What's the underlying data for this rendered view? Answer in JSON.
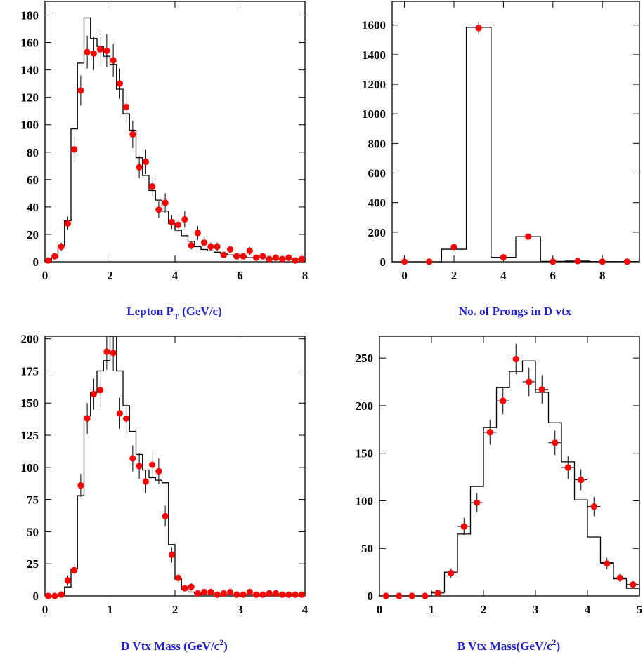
{
  "colors": {
    "data_points": "#ff0000",
    "histogram": "#000000",
    "axis_titles": "#1f1fd6"
  },
  "chart_data": [
    {
      "type": "histogram_with_points",
      "xlabel": "Lepton P",
      "xlabel_sub": "T",
      "xlabel_tail": " (GeV/c)",
      "xlim": [
        0,
        8
      ],
      "ylim": [
        0,
        190
      ],
      "x_ticks": [
        0,
        2,
        4,
        6,
        8
      ],
      "y_ticks": [
        0,
        20,
        40,
        60,
        80,
        100,
        120,
        140,
        160,
        180
      ],
      "histogram": {
        "edges": [
          0,
          0.2,
          0.4,
          0.6,
          0.8,
          1.0,
          1.2,
          1.4,
          1.6,
          1.8,
          2.0,
          2.2,
          2.4,
          2.6,
          2.8,
          3.0,
          3.2,
          3.4,
          3.6,
          3.8,
          4.0,
          4.2,
          4.4,
          4.6,
          4.8,
          5.0,
          5.2,
          5.4,
          5.6,
          5.8,
          6.0,
          6.2,
          6.4,
          6.6,
          6.8,
          7.0,
          7.2,
          7.4,
          7.6,
          7.8,
          8.0
        ],
        "values": [
          1,
          3,
          12,
          30,
          97,
          145,
          178,
          163,
          157,
          150,
          144,
          126,
          108,
          96,
          76,
          63,
          52,
          45,
          37,
          28,
          23,
          19,
          15,
          11,
          9,
          8,
          7,
          6,
          5,
          4,
          4,
          3,
          3,
          3,
          2,
          2,
          2,
          2,
          2,
          2
        ]
      },
      "points": {
        "x": [
          0.1,
          0.3,
          0.5,
          0.7,
          0.9,
          1.1,
          1.3,
          1.5,
          1.7,
          1.9,
          2.1,
          2.3,
          2.5,
          2.7,
          2.9,
          3.1,
          3.3,
          3.5,
          3.7,
          3.9,
          4.1,
          4.3,
          4.5,
          4.7,
          4.9,
          5.1,
          5.3,
          5.5,
          5.7,
          5.9,
          6.1,
          6.3,
          6.5,
          6.7,
          6.9,
          7.1,
          7.3,
          7.5,
          7.7,
          7.9
        ],
        "y": [
          1,
          4,
          11,
          28,
          82,
          125,
          153,
          152,
          155,
          154,
          147,
          130,
          113,
          93,
          69,
          73,
          55,
          38,
          43,
          29,
          27,
          31,
          12,
          21,
          14,
          11,
          11,
          5,
          9,
          4,
          4,
          8,
          3,
          4,
          2,
          3,
          2,
          3,
          1,
          2
        ],
        "yerr": [
          1,
          2,
          3,
          5,
          9,
          11,
          12,
          12,
          12,
          12,
          12,
          11,
          11,
          10,
          8,
          9,
          7,
          6,
          7,
          5,
          5,
          6,
          3,
          5,
          4,
          3,
          3,
          2,
          3,
          2,
          2,
          3,
          2,
          2,
          1,
          2,
          1,
          2,
          1,
          1
        ]
      }
    },
    {
      "type": "histogram_with_points",
      "xlabel": "No. of Prongs in D vtx",
      "xlim": [
        -0.5,
        9.5
      ],
      "ylim": [
        0,
        1760
      ],
      "x_ticks": [
        0,
        2,
        4,
        6,
        8
      ],
      "y_ticks": [
        0,
        200,
        400,
        600,
        800,
        1000,
        1200,
        1400,
        1600
      ],
      "histogram": {
        "edges": [
          -0.5,
          0.5,
          1.5,
          2.5,
          3.5,
          4.5,
          5.5,
          6.5,
          7.5,
          8.5,
          9.5
        ],
        "values": [
          0,
          0,
          85,
          1585,
          30,
          170,
          3,
          5,
          1,
          1
        ]
      },
      "points": {
        "x": [
          0,
          1,
          2,
          3,
          4,
          5,
          6,
          7,
          8,
          9
        ],
        "y": [
          1,
          1,
          100,
          1580,
          30,
          170,
          1,
          5,
          1,
          1
        ],
        "yerr": [
          1,
          1,
          10,
          40,
          5,
          13,
          1,
          2,
          1,
          1
        ]
      }
    },
    {
      "type": "histogram_with_points",
      "xlabel": "D Vtx Mass (GeV/c",
      "xlabel_sup": "2",
      "xlabel_tail": ")",
      "xlim": [
        0,
        4
      ],
      "ylim": [
        0,
        202
      ],
      "x_ticks": [
        0,
        1,
        2,
        3,
        4
      ],
      "y_ticks": [
        0,
        25,
        50,
        75,
        100,
        125,
        150,
        175,
        200
      ],
      "histogram": {
        "edges": [
          0,
          0.1,
          0.2,
          0.3,
          0.4,
          0.5,
          0.6,
          0.7,
          0.8,
          0.9,
          1.0,
          1.1,
          1.2,
          1.3,
          1.4,
          1.5,
          1.6,
          1.7,
          1.8,
          1.9,
          2.0,
          2.1,
          2.2,
          2.3,
          2.4,
          2.5,
          2.6,
          2.7,
          2.8,
          2.9,
          3.0,
          3.1,
          3.2,
          3.3,
          3.4,
          3.5,
          3.6,
          3.7,
          3.8,
          3.9,
          4.0
        ],
        "values": [
          0,
          0,
          1,
          7,
          21,
          78,
          140,
          158,
          175,
          183,
          210,
          175,
          148,
          128,
          110,
          98,
          92,
          90,
          88,
          40,
          13,
          5,
          3,
          2,
          1,
          1,
          1,
          1,
          1,
          1,
          1,
          1,
          1,
          1,
          1,
          1,
          1,
          1,
          1,
          1
        ]
      },
      "points": {
        "x": [
          0.05,
          0.15,
          0.25,
          0.35,
          0.45,
          0.55,
          0.65,
          0.75,
          0.85,
          0.95,
          1.05,
          1.15,
          1.25,
          1.35,
          1.45,
          1.55,
          1.65,
          1.75,
          1.85,
          1.95,
          2.05,
          2.15,
          2.25,
          2.35,
          2.45,
          2.55,
          2.65,
          2.75,
          2.85,
          2.95,
          3.05,
          3.15,
          3.25,
          3.35,
          3.45,
          3.55,
          3.65,
          3.75,
          3.85,
          3.95
        ],
        "y": [
          0,
          0,
          1,
          12,
          20,
          86,
          138,
          157,
          160,
          190,
          189,
          142,
          138,
          107,
          101,
          89,
          102,
          97,
          62,
          32,
          14,
          6,
          7,
          2,
          3,
          3,
          1,
          2,
          3,
          1,
          1,
          3,
          1,
          1,
          2,
          2,
          1,
          1,
          1,
          1
        ],
        "yerr": [
          1,
          1,
          1,
          4,
          5,
          9,
          12,
          12,
          13,
          14,
          14,
          12,
          12,
          10,
          10,
          9,
          10,
          10,
          8,
          6,
          4,
          2,
          3,
          1,
          2,
          2,
          1,
          1,
          2,
          1,
          1,
          2,
          1,
          1,
          1,
          1,
          1,
          1,
          1,
          1
        ]
      }
    },
    {
      "type": "histogram_with_points",
      "xlabel": "B Vtx Mass(GeV/c",
      "xlabel_sup": "2",
      "xlabel_tail": ")",
      "xlim": [
        0,
        5
      ],
      "ylim": [
        0,
        273
      ],
      "x_ticks": [
        0,
        1,
        2,
        3,
        4,
        5
      ],
      "y_ticks": [
        0,
        50,
        100,
        150,
        200,
        250
      ],
      "histogram": {
        "edges": [
          0,
          0.25,
          0.5,
          0.75,
          1.0,
          1.25,
          1.5,
          1.75,
          2.0,
          2.25,
          2.5,
          2.75,
          3.0,
          3.25,
          3.5,
          3.75,
          4.0,
          4.25,
          4.5,
          4.75,
          5.0
        ],
        "values": [
          0,
          0,
          0,
          0,
          4,
          25,
          65,
          115,
          177,
          219,
          236,
          247,
          214,
          182,
          141,
          101,
          62,
          35,
          18,
          8
        ]
      },
      "points": {
        "x": [
          0.125,
          0.375,
          0.625,
          0.875,
          1.125,
          1.375,
          1.625,
          1.875,
          2.125,
          2.375,
          2.625,
          2.875,
          3.125,
          3.375,
          3.625,
          3.875,
          4.125,
          4.375,
          4.625,
          4.875
        ],
        "y": [
          0,
          0,
          0,
          0,
          3,
          24,
          73,
          98,
          172,
          205,
          249,
          225,
          217,
          161,
          135,
          122,
          94,
          34,
          19,
          12
        ],
        "yerr": [
          1,
          1,
          1,
          1,
          2,
          5,
          9,
          10,
          13,
          14,
          16,
          15,
          15,
          13,
          12,
          11,
          10,
          6,
          4,
          3
        ]
      }
    }
  ]
}
